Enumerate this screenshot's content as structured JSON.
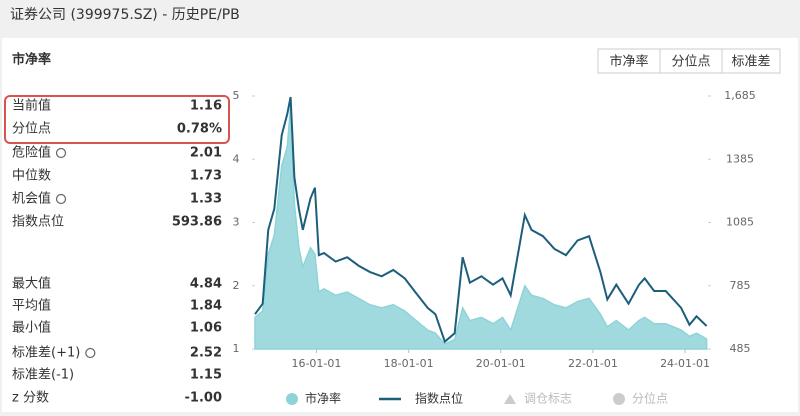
{
  "header": {
    "title": "证券公司 (399975.SZ) - 历史PE/PB"
  },
  "section_title": "市净率",
  "buttons": [
    "市净率",
    "分位点",
    "标准差"
  ],
  "stats_top": [
    {
      "label": "当前值",
      "value": "1.16",
      "highlight": true
    },
    {
      "label": "分位点",
      "value": "0.78%",
      "highlight": true
    },
    {
      "label": "危险值",
      "value": "2.01",
      "info_icon": true
    },
    {
      "label": "中位数",
      "value": "1.73"
    },
    {
      "label": "机会值",
      "value": "1.33",
      "info_icon": true
    },
    {
      "label": "指数点位",
      "value": "593.86"
    }
  ],
  "stats_bottom": [
    {
      "label": "最大值",
      "value": "4.84"
    },
    {
      "label": "平均值",
      "value": "1.84"
    },
    {
      "label": "最小值",
      "value": "1.06"
    },
    {
      "label": "标准差(+1)",
      "value": "2.52",
      "info_icon": true
    },
    {
      "label": "标准差(-1)",
      "value": "1.15"
    },
    {
      "label": "z 分数",
      "value": "-1.00"
    }
  ],
  "chart_data": {
    "type": "area-line",
    "x": [
      "14-09-01",
      "14-11-01",
      "14-12-15",
      "15-02-01",
      "15-04-01",
      "15-05-15",
      "15-06-10",
      "15-07-10",
      "15-08-15",
      "15-09-15",
      "15-11-15",
      "15-12-20",
      "16-01-20",
      "16-03-01",
      "16-06-01",
      "16-09-01",
      "16-12-01",
      "17-03-01",
      "17-06-01",
      "17-09-01",
      "17-12-01",
      "18-03-01",
      "18-06-01",
      "18-08-01",
      "18-10-15",
      "19-01-01",
      "19-03-05",
      "19-05-01",
      "19-08-01",
      "19-11-01",
      "20-01-15",
      "20-03-20",
      "20-07-10",
      "20-09-01",
      "20-12-01",
      "21-03-01",
      "21-06-01",
      "21-09-01",
      "21-12-01",
      "22-03-01",
      "22-04-25",
      "22-07-05",
      "22-10-10",
      "23-01-01",
      "23-02-15",
      "23-05-01",
      "23-08-01",
      "23-10-01",
      "23-12-01",
      "24-02-05",
      "24-04-01",
      "24-06-20"
    ],
    "xlim": [
      "14-09-01",
      "24-07-01"
    ],
    "xticks": [
      "16-01-01",
      "18-01-01",
      "20-01-01",
      "22-01-01",
      "24-01-01"
    ],
    "ylim": [
      1,
      5
    ],
    "yticks": [
      1,
      2,
      3,
      4,
      5
    ],
    "y2lim": [
      485,
      1685
    ],
    "y2ticks": [
      485,
      785,
      1085,
      1385,
      {
        "value": 1685,
        "label": "1,685"
      }
    ],
    "series": [
      {
        "name": "市净率",
        "color": "#8fd3d9",
        "values": [
          1.5,
          1.6,
          2.5,
          2.8,
          3.9,
          4.2,
          4.84,
          3.3,
          2.6,
          2.3,
          2.6,
          2.5,
          1.9,
          1.95,
          1.85,
          1.9,
          1.8,
          1.7,
          1.65,
          1.7,
          1.6,
          1.45,
          1.3,
          1.25,
          1.08,
          1.15,
          1.65,
          1.45,
          1.5,
          1.4,
          1.5,
          1.3,
          2.0,
          1.85,
          1.8,
          1.7,
          1.65,
          1.75,
          1.8,
          1.55,
          1.35,
          1.45,
          1.3,
          1.45,
          1.5,
          1.4,
          1.4,
          1.35,
          1.3,
          1.2,
          1.25,
          1.16
        ]
      },
      {
        "name": "指数点位",
        "color": "#1d5e7c",
        "axis": "y2",
        "values": [
          650,
          700,
          1050,
          1150,
          1500,
          1600,
          1680,
          1300,
          1150,
          1050,
          1200,
          1250,
          930,
          940,
          900,
          920,
          880,
          850,
          830,
          860,
          820,
          750,
          680,
          650,
          520,
          560,
          920,
          800,
          830,
          790,
          820,
          740,
          1120,
          1050,
          1020,
          960,
          930,
          1000,
          1020,
          850,
          720,
          790,
          700,
          790,
          820,
          760,
          760,
          720,
          680,
          600,
          640,
          594
        ]
      }
    ],
    "legend_extra": [
      {
        "name": "调仓标志",
        "color": "#cccccc"
      },
      {
        "name": "分位点",
        "color": "#cccccc"
      }
    ]
  }
}
